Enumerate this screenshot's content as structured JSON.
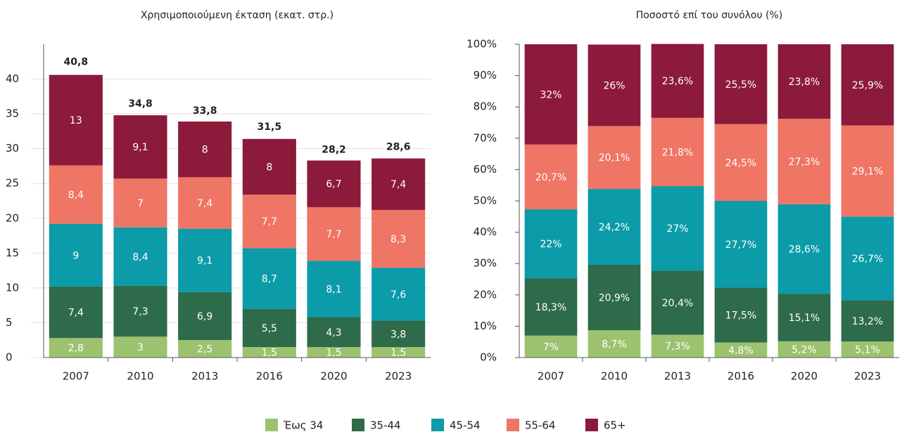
{
  "chart_data": [
    {
      "type": "bar",
      "stacked": true,
      "title": "Χρησιμοποιούμενη έκταση (εκατ. στρ.)",
      "categories": [
        "2007",
        "2010",
        "2013",
        "2016",
        "2020",
        "2023"
      ],
      "series": [
        {
          "name": "Έως 34",
          "color": "#9dc26f",
          "values": [
            2.8,
            3,
            2.5,
            1.5,
            1.5,
            1.5
          ],
          "value_labels": [
            "2,8",
            "3",
            "2,5",
            "1,5",
            "1,5",
            "1,5"
          ]
        },
        {
          "name": "35-44",
          "color": "#2e6b4a",
          "values": [
            7.4,
            7.3,
            6.9,
            5.5,
            4.3,
            3.8
          ],
          "value_labels": [
            "7,4",
            "7,3",
            "6,9",
            "5,5",
            "4,3",
            "3,8"
          ]
        },
        {
          "name": "45-54",
          "color": "#0c9ba8",
          "values": [
            9,
            8.4,
            9.1,
            8.7,
            8.1,
            7.6
          ],
          "value_labels": [
            "9",
            "8,4",
            "9,1",
            "8,7",
            "8,1",
            "7,6"
          ]
        },
        {
          "name": "55-64",
          "color": "#ef7565",
          "values": [
            8.4,
            7,
            7.4,
            7.7,
            7.7,
            8.3
          ],
          "value_labels": [
            "8,4",
            "7",
            "7,4",
            "7,7",
            "7,7",
            "8,3"
          ]
        },
        {
          "name": "65+",
          "color": "#8c1a3a",
          "values": [
            13,
            9.1,
            8,
            8,
            6.7,
            7.4
          ],
          "value_labels": [
            "13",
            "9,1",
            "8",
            "8",
            "6,7",
            "7,4"
          ]
        }
      ],
      "totals": [
        40.8,
        34.8,
        33.8,
        31.5,
        28.2,
        28.6
      ],
      "total_labels": [
        "40,8",
        "34,8",
        "33,8",
        "31,5",
        "28,2",
        "28,6"
      ],
      "ylim": [
        0,
        45
      ],
      "yticks": [
        0,
        5,
        10,
        15,
        20,
        25,
        30,
        35,
        40
      ],
      "grid": true
    },
    {
      "type": "bar",
      "stacked": true,
      "title": "Ποσοστό επί του συνόλου (%)",
      "categories": [
        "2007",
        "2010",
        "2013",
        "2016",
        "2020",
        "2023"
      ],
      "series": [
        {
          "color": "#9dc26f",
          "values": [
            7,
            8.7,
            7.3,
            4.8,
            5.2,
            5.1
          ],
          "value_labels": [
            "7%",
            "8,7%",
            "7,3%",
            "4,8%",
            "5,2%",
            "5,1%"
          ]
        },
        {
          "color": "#2e6b4a",
          "values": [
            18.3,
            20.9,
            20.4,
            17.5,
            15.1,
            13.2
          ],
          "value_labels": [
            "18,3%",
            "20,9%",
            "20,4%",
            "17,5%",
            "15,1%",
            "13,2%"
          ]
        },
        {
          "color": "#0c9ba8",
          "values": [
            22,
            24.2,
            27,
            27.7,
            28.6,
            26.7
          ],
          "value_labels": [
            "22%",
            "24,2%",
            "27%",
            "27,7%",
            "28,6%",
            "26,7%"
          ]
        },
        {
          "color": "#ef7565",
          "values": [
            20.7,
            20.1,
            21.8,
            24.5,
            27.3,
            29.1
          ],
          "value_labels": [
            "20,7%",
            "20,1%",
            "21,8%",
            "24,5%",
            "27,3%",
            "29,1%"
          ]
        },
        {
          "color": "#8c1a3a",
          "values": [
            32,
            26,
            23.6,
            25.5,
            23.8,
            25.9
          ],
          "value_labels": [
            "32%",
            "26%",
            "23,6%",
            "25,5%",
            "23,8%",
            "25,9%"
          ]
        }
      ],
      "ylim": [
        0,
        100
      ],
      "yticks": [
        {
          "value": 0,
          "label": "0%"
        },
        {
          "value": 10,
          "label": "10%"
        },
        {
          "value": 20,
          "label": "20%"
        },
        {
          "value": 30,
          "label": "30%"
        },
        {
          "value": 40,
          "label": "40%"
        },
        {
          "value": 50,
          "label": "50%"
        },
        {
          "value": 60,
          "label": "60%"
        },
        {
          "value": 70,
          "label": "70%"
        },
        {
          "value": 80,
          "label": "80%"
        },
        {
          "value": 90,
          "label": "90%"
        },
        {
          "value": 100,
          "label": "100%"
        }
      ],
      "grid": false
    }
  ]
}
